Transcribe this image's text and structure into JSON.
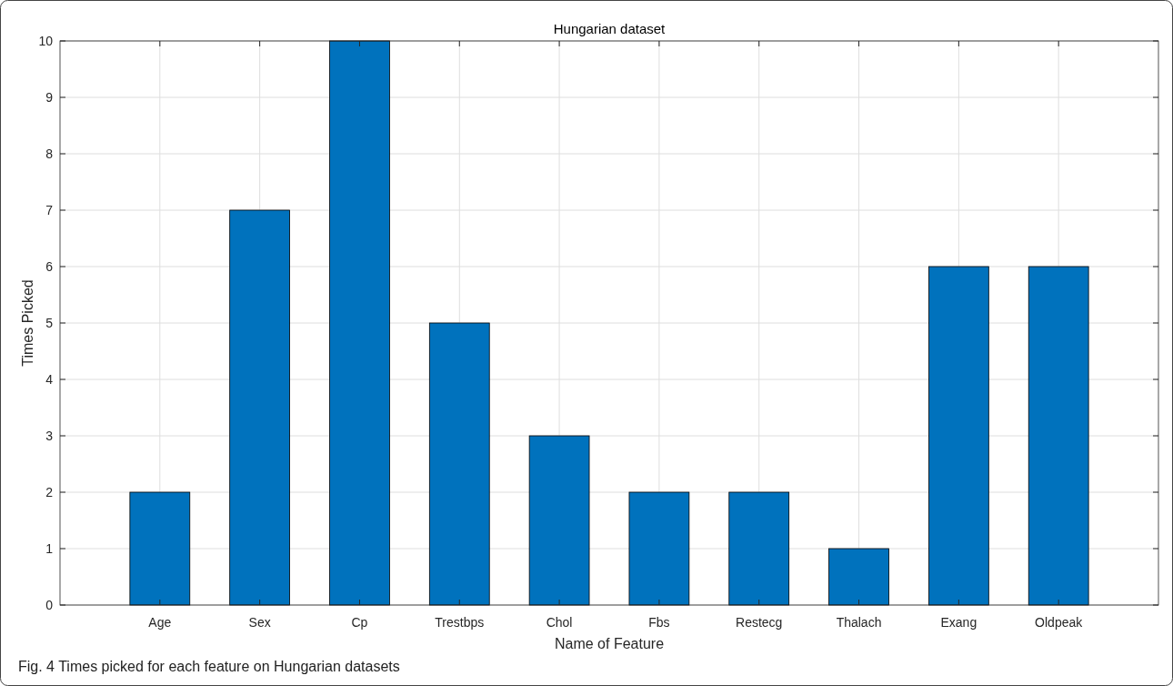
{
  "chart_data": {
    "type": "bar",
    "title": "Hungarian dataset",
    "xlabel": "Name of Feature",
    "ylabel": "Times Picked",
    "categories": [
      "Age",
      "Sex",
      "Cp",
      "Trestbps",
      "Chol",
      "Fbs",
      "Restecg",
      "Thalach",
      "Exang",
      "Oldpeak"
    ],
    "values": [
      2,
      7,
      10,
      5,
      3,
      2,
      2,
      1,
      6,
      6
    ],
    "color": "#0072bd",
    "ylim": [
      0,
      10
    ],
    "yticks": [
      0,
      1,
      2,
      3,
      4,
      5,
      6,
      7,
      8,
      9,
      10
    ],
    "grid": true,
    "annotations": [
      "Fig. 4  Times picked for each feature on Hungarian datasets"
    ]
  }
}
